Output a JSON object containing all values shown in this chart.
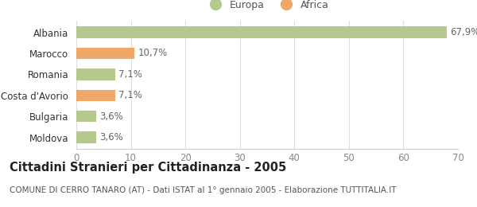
{
  "categories": [
    "Albania",
    "Marocco",
    "Romania",
    "Costa d'Avorio",
    "Bulgaria",
    "Moldova"
  ],
  "values": [
    67.9,
    10.7,
    7.1,
    7.1,
    3.6,
    3.6
  ],
  "bar_colors": [
    "#b5c98e",
    "#f0a868",
    "#b5c98e",
    "#f0a868",
    "#b5c98e",
    "#b5c98e"
  ],
  "bar_types": [
    "Europa",
    "Africa",
    "Europa",
    "Africa",
    "Europa",
    "Europa"
  ],
  "labels": [
    "67,9%",
    "10,7%",
    "7,1%",
    "7,1%",
    "3,6%",
    "3,6%"
  ],
  "xlim": [
    0,
    70
  ],
  "xticks": [
    0,
    10,
    20,
    30,
    40,
    50,
    60,
    70
  ],
  "legend_europa_color": "#b5c98e",
  "legend_africa_color": "#f0a868",
  "title": "Cittadini Stranieri per Cittadinanza - 2005",
  "subtitle": "COMUNE DI CERRO TANARO (AT) - Dati ISTAT al 1° gennaio 2005 - Elaborazione TUTTITALIA.IT",
  "background_color": "#ffffff",
  "grid_color": "#dddddd",
  "bar_height": 0.55,
  "label_fontsize": 8.5,
  "title_fontsize": 10.5,
  "subtitle_fontsize": 7.5,
  "tick_fontsize": 8.5,
  "ytick_fontsize": 8.5
}
